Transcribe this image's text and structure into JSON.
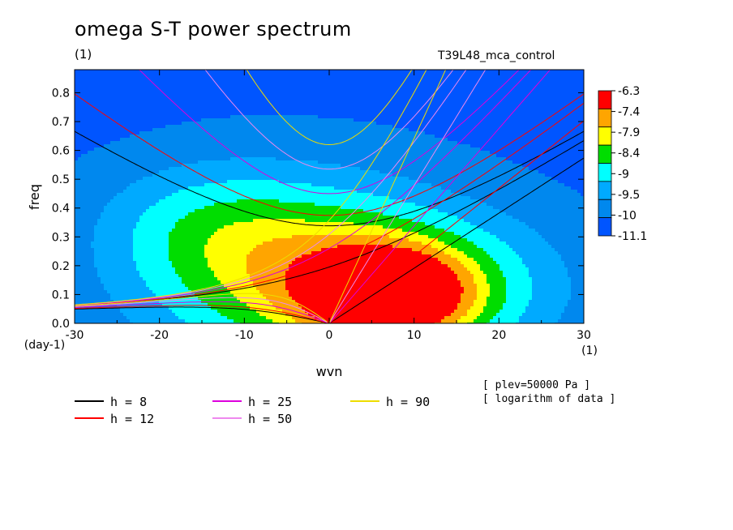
{
  "header": {
    "title": "omega S-T power spectrum",
    "units": "(1)",
    "run_name": "T39L48_mca_control"
  },
  "notes": {
    "level": "[ plev=50000 Pa ]",
    "transform": "[ logarithm of data ]"
  },
  "chart_data": {
    "type": "heatmap",
    "xlabel": "wvn",
    "ylabel": "freq",
    "x_units": "(1)",
    "y_units": "(day-1)",
    "xlim": [
      -30,
      30
    ],
    "ylim": [
      0,
      0.88
    ],
    "x_ticks": [
      -30,
      -20,
      -10,
      0,
      10,
      20,
      30
    ],
    "x_tick_labels": [
      "-30",
      "-20",
      "-10",
      "0",
      "10",
      "20",
      "30"
    ],
    "y_ticks": [
      0,
      0.1,
      0.2,
      0.3,
      0.4,
      0.5,
      0.6,
      0.7,
      0.8
    ],
    "y_tick_labels": [
      "0.0",
      "0.1",
      "0.2",
      "0.3",
      "0.4",
      "0.5",
      "0.6",
      "0.7",
      "0.8"
    ],
    "grid": false,
    "colorbar": {
      "labels": [
        "-6.3",
        "-7.4",
        "-7.9",
        "-8.4",
        "-9",
        "-9.5",
        "-10",
        "-11.1"
      ],
      "colors": [
        "#ff0000",
        "#ffa500",
        "#ffff00",
        "#00dd00",
        "#00ffff",
        "#00aaff",
        "#0088ee",
        "#0055ff"
      ]
    },
    "field": {
      "background_level": -10.3,
      "blobs": [
        {
          "x": 7,
          "y": 0.1,
          "sx": 9,
          "sy": 0.15,
          "amp": 3.6
        },
        {
          "x": -4,
          "y": 0.18,
          "sx": 18,
          "sy": 0.3,
          "amp": 2.3
        },
        {
          "x": 12,
          "y": 0.12,
          "sx": 16,
          "sy": 0.25,
          "amp": 1.3
        },
        {
          "x": -15,
          "y": 0.35,
          "sx": 12,
          "sy": 0.2,
          "amp": 0.7
        },
        {
          "x": 30,
          "y": 0.85,
          "sx": 6,
          "sy": 0.12,
          "amp": -1.1
        },
        {
          "x": -30,
          "y": 0.87,
          "sx": 8,
          "sy": 0.12,
          "amp": -0.4
        }
      ]
    },
    "dispersion_legend": [
      {
        "label": "h =  8",
        "color": "#000000"
      },
      {
        "label": "h = 12",
        "color": "#ff0000"
      },
      {
        "label": "h = 25",
        "color": "#dd00dd"
      },
      {
        "label": "h = 50",
        "color": "#ee88ee"
      },
      {
        "label": "h = 90",
        "color": "#eedd00"
      }
    ],
    "equivalent_depths": [
      8,
      12,
      25,
      50,
      90
    ]
  }
}
